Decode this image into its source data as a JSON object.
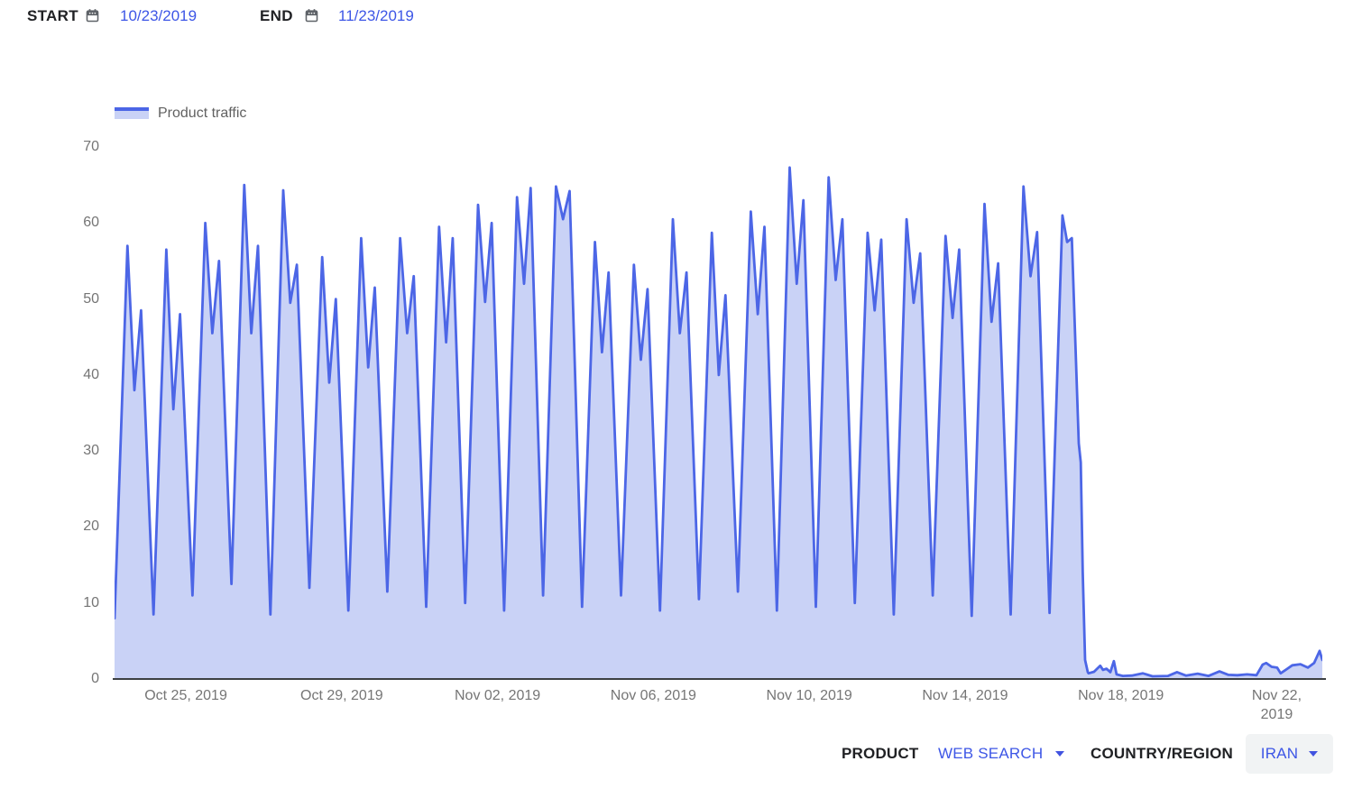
{
  "date_controls": {
    "start_label": "START",
    "start_value": "10/23/2019",
    "end_label": "END",
    "end_value": "11/23/2019"
  },
  "legend": {
    "label": "Product traffic"
  },
  "filters": {
    "product_label": "PRODUCT",
    "product_value": "WEB SEARCH",
    "region_label": "COUNTRY/REGION",
    "region_value": "IRAN"
  },
  "colors": {
    "chart_line": "#4c66e6",
    "chart_fill": "#c9d2f6",
    "link_blue": "#3d56e6",
    "accent_blue": "#4153e0",
    "label_dark": "#202124",
    "axis_text": "#757575",
    "axis_line": "#3c4043",
    "icon_gray": "#5f6368",
    "region_pill_bg": "#f1f3f4"
  },
  "chart_data": {
    "type": "area",
    "series_name": "Product traffic",
    "x_unit": "days since 2019-10-23 00:00 (Iran web-search traffic, daily cycle; national internet shutdown after Nov 16)",
    "x_range": [
      0.17,
      31.17
    ],
    "ylim": [
      0,
      70
    ],
    "y_ticks": [
      0,
      10,
      20,
      30,
      40,
      50,
      60,
      70
    ],
    "x_ticks": [
      {
        "day": 2,
        "label": "Oct 25, 2019"
      },
      {
        "day": 6,
        "label": "Oct 29, 2019"
      },
      {
        "day": 10,
        "label": "Nov 02, 2019"
      },
      {
        "day": 14,
        "label": "Nov 06, 2019"
      },
      {
        "day": 18,
        "label": "Nov 10, 2019"
      },
      {
        "day": 22,
        "label": "Nov 14, 2019"
      },
      {
        "day": 26,
        "label": "Nov 18, 2019"
      },
      {
        "day": 30,
        "label": "Nov 22,\n2019"
      }
    ],
    "grid": false,
    "legend_position": "top-left",
    "points": [
      [
        0.17,
        8
      ],
      [
        0.5,
        57
      ],
      [
        0.68,
        38
      ],
      [
        0.85,
        48.5
      ],
      [
        1.17,
        8.5
      ],
      [
        1.5,
        56.5
      ],
      [
        1.68,
        35.5
      ],
      [
        1.85,
        48
      ],
      [
        2.17,
        11
      ],
      [
        2.5,
        60
      ],
      [
        2.68,
        45.5
      ],
      [
        2.85,
        55
      ],
      [
        3.17,
        12.5
      ],
      [
        3.5,
        65
      ],
      [
        3.68,
        45.5
      ],
      [
        3.85,
        57
      ],
      [
        4.17,
        8.5
      ],
      [
        4.5,
        64.3
      ],
      [
        4.68,
        49.5
      ],
      [
        4.85,
        54.5
      ],
      [
        5.17,
        12
      ],
      [
        5.5,
        55.5
      ],
      [
        5.68,
        39
      ],
      [
        5.85,
        50
      ],
      [
        6.17,
        9
      ],
      [
        6.5,
        58
      ],
      [
        6.68,
        41
      ],
      [
        6.85,
        51.5
      ],
      [
        7.17,
        11.5
      ],
      [
        7.5,
        58
      ],
      [
        7.68,
        45.5
      ],
      [
        7.85,
        53
      ],
      [
        8.17,
        9.5
      ],
      [
        8.5,
        59.5
      ],
      [
        8.68,
        44.3
      ],
      [
        8.85,
        58
      ],
      [
        9.17,
        10
      ],
      [
        9.5,
        62.4
      ],
      [
        9.68,
        49.6
      ],
      [
        9.85,
        60
      ],
      [
        10.17,
        9
      ],
      [
        10.5,
        63.4
      ],
      [
        10.68,
        52
      ],
      [
        10.85,
        64.6
      ],
      [
        11.17,
        11
      ],
      [
        11.5,
        64.8
      ],
      [
        11.68,
        60.5
      ],
      [
        11.85,
        64.2
      ],
      [
        12.17,
        9.5
      ],
      [
        12.5,
        57.5
      ],
      [
        12.68,
        43
      ],
      [
        12.85,
        53.5
      ],
      [
        13.17,
        11
      ],
      [
        13.5,
        54.5
      ],
      [
        13.68,
        42
      ],
      [
        13.85,
        51.3
      ],
      [
        14.17,
        9
      ],
      [
        14.5,
        60.5
      ],
      [
        14.68,
        45.5
      ],
      [
        14.85,
        53.5
      ],
      [
        15.17,
        10.5
      ],
      [
        15.5,
        58.7
      ],
      [
        15.68,
        40
      ],
      [
        15.85,
        50.5
      ],
      [
        16.17,
        11.5
      ],
      [
        16.5,
        61.5
      ],
      [
        16.68,
        48
      ],
      [
        16.85,
        59.5
      ],
      [
        17.17,
        9
      ],
      [
        17.5,
        67.3
      ],
      [
        17.68,
        52
      ],
      [
        17.85,
        63
      ],
      [
        18.17,
        9.5
      ],
      [
        18.5,
        66
      ],
      [
        18.68,
        52.5
      ],
      [
        18.85,
        60.5
      ],
      [
        19.17,
        10
      ],
      [
        19.5,
        58.7
      ],
      [
        19.68,
        48.5
      ],
      [
        19.85,
        57.8
      ],
      [
        20.17,
        8.5
      ],
      [
        20.5,
        60.5
      ],
      [
        20.68,
        49.5
      ],
      [
        20.85,
        56
      ],
      [
        21.17,
        11
      ],
      [
        21.5,
        58.3
      ],
      [
        21.68,
        47.5
      ],
      [
        21.85,
        56.5
      ],
      [
        22.17,
        8.3
      ],
      [
        22.5,
        62.5
      ],
      [
        22.68,
        47
      ],
      [
        22.85,
        54.7
      ],
      [
        23.17,
        8.5
      ],
      [
        23.5,
        64.8
      ],
      [
        23.68,
        53
      ],
      [
        23.85,
        58.8
      ],
      [
        24.17,
        8.7
      ],
      [
        24.5,
        61
      ],
      [
        24.62,
        57.5
      ],
      [
        24.74,
        58
      ],
      [
        24.92,
        31
      ],
      [
        24.97,
        28.5
      ],
      [
        25.02,
        14
      ],
      [
        25.08,
        2.5
      ],
      [
        25.15,
        0.9
      ],
      [
        25.17,
        0.75
      ],
      [
        25.31,
        0.95
      ],
      [
        25.47,
        1.75
      ],
      [
        25.54,
        1.2
      ],
      [
        25.63,
        1.35
      ],
      [
        25.73,
        0.9
      ],
      [
        25.82,
        2.35
      ],
      [
        25.89,
        0.6
      ],
      [
        26.05,
        0.4
      ],
      [
        26.28,
        0.45
      ],
      [
        26.56,
        0.75
      ],
      [
        26.81,
        0.35
      ],
      [
        27.21,
        0.4
      ],
      [
        27.44,
        0.9
      ],
      [
        27.67,
        0.45
      ],
      [
        27.97,
        0.7
      ],
      [
        28.25,
        0.4
      ],
      [
        28.53,
        1.0
      ],
      [
        28.76,
        0.55
      ],
      [
        28.99,
        0.5
      ],
      [
        29.24,
        0.6
      ],
      [
        29.48,
        0.5
      ],
      [
        29.64,
        1.9
      ],
      [
        29.73,
        2.1
      ],
      [
        29.87,
        1.6
      ],
      [
        30.01,
        1.5
      ],
      [
        30.1,
        0.75
      ],
      [
        30.26,
        1.3
      ],
      [
        30.4,
        1.8
      ],
      [
        30.61,
        1.95
      ],
      [
        30.8,
        1.5
      ],
      [
        30.96,
        2.1
      ],
      [
        31.1,
        3.7
      ],
      [
        31.17,
        2.5
      ]
    ]
  }
}
